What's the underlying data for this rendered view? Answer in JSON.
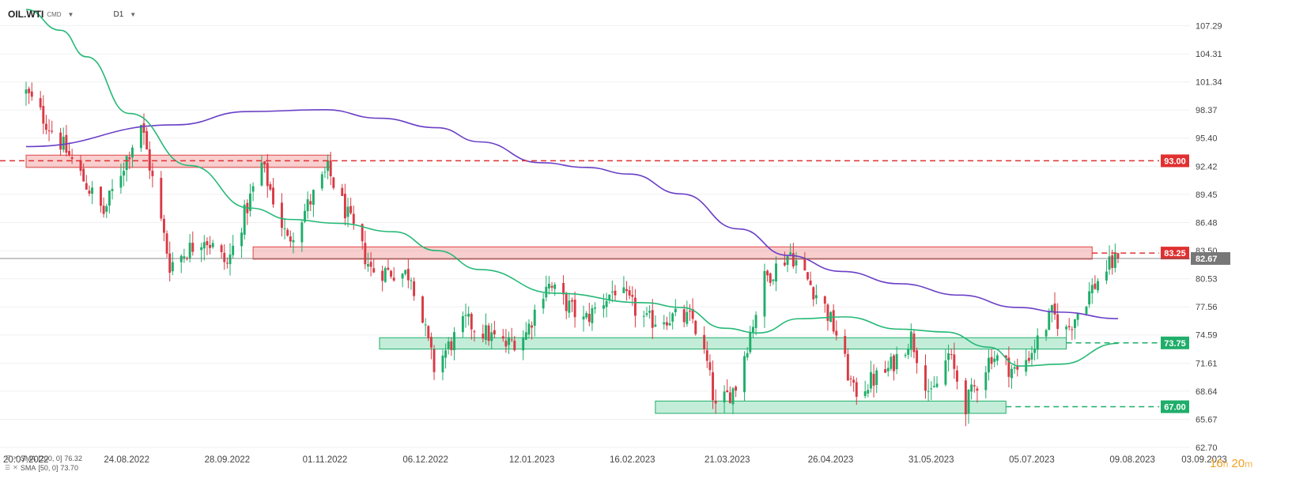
{
  "header": {
    "symbol": "OIL.WTI",
    "exchange": "CMD",
    "timeframe": "D1"
  },
  "legend": [
    {
      "name": "SMA",
      "params": "[200, 0]",
      "value": "76.32"
    },
    {
      "name": "SMA",
      "params": "[50, 0]",
      "value": "73.70"
    }
  ],
  "timer": {
    "hours": "16",
    "h_unit": "h",
    "minutes": "20",
    "m_unit": "m"
  },
  "chart_data": {
    "type": "candlestick",
    "y_ticks": [
      "107.29",
      "104.31",
      "101.34",
      "98.37",
      "95.40",
      "92.42",
      "89.45",
      "86.48",
      "83.50",
      "80.53",
      "77.56",
      "74.59",
      "71.61",
      "68.64",
      "65.67",
      "62.70"
    ],
    "x_ticks": [
      "20.07.2022",
      "24.08.2022",
      "28.09.2022",
      "01.11.2022",
      "06.12.2022",
      "12.01.2023",
      "16.02.2023",
      "21.03.2023",
      "26.04.2023",
      "31.05.2023",
      "05.07.2023",
      "09.08.2023",
      "03.09.2023"
    ],
    "ylim": [
      62.7,
      110.0
    ],
    "levels": [
      {
        "value": 93.0,
        "label": "93.00",
        "color": "#e03030"
      },
      {
        "value": 83.25,
        "label": "83.25",
        "color": "#e03030"
      },
      {
        "value": 73.75,
        "label": "73.75",
        "color": "#1fae6a"
      },
      {
        "value": 67.0,
        "label": "67.00",
        "color": "#1fae6a"
      }
    ],
    "last_price": {
      "value": 82.67,
      "label": "82.67"
    },
    "zones": [
      {
        "from": "20.07.2022",
        "to": "03.11.2022",
        "low": 92.3,
        "high": 93.6,
        "color": "red"
      },
      {
        "from": "07.10.2022",
        "to": "26.07.2023",
        "low": 82.6,
        "high": 83.9,
        "color": "red"
      },
      {
        "from": "20.11.2022",
        "to": "17.07.2023",
        "low": 73.1,
        "high": 74.3,
        "color": "green"
      },
      {
        "from": "24.02.2023",
        "to": "26.06.2023",
        "low": 66.3,
        "high": 67.6,
        "color": "green"
      }
    ],
    "anchors": [
      [
        "20.07.2022",
        100.2
      ],
      [
        "02.08.2022",
        94.5
      ],
      [
        "16.08.2022",
        87.5
      ],
      [
        "29.08.2022",
        97.0
      ],
      [
        "08.09.2022",
        82.0
      ],
      [
        "20.09.2022",
        85.0
      ],
      [
        "28.09.2022",
        82.0
      ],
      [
        "10.10.2022",
        92.6
      ],
      [
        "19.10.2022",
        84.5
      ],
      [
        "02.11.2022",
        92.0
      ],
      [
        "17.11.2022",
        81.5
      ],
      [
        "01.12.2022",
        81.0
      ],
      [
        "09.12.2022",
        71.1
      ],
      [
        "20.12.2022",
        76.0
      ],
      [
        "03.01.2023",
        73.5
      ],
      [
        "10.01.2023",
        74.8
      ],
      [
        "17.01.2023",
        80.1
      ],
      [
        "30.01.2023",
        76.0
      ],
      [
        "10.02.2023",
        79.5
      ],
      [
        "21.02.2023",
        76.0
      ],
      [
        "28.02.2023",
        76.5
      ],
      [
        "09.03.2023",
        76.2
      ],
      [
        "14.03.2023",
        71.5
      ],
      [
        "17.03.2023",
        66.7
      ],
      [
        "24.03.2023",
        69.2
      ],
      [
        "03.04.2023",
        80.5
      ],
      [
        "12.04.2023",
        83.3
      ],
      [
        "24.04.2023",
        77.5
      ],
      [
        "28.04.2023",
        74.7
      ],
      [
        "04.05.2023",
        68.5
      ],
      [
        "16.05.2023",
        70.9
      ],
      [
        "24.05.2023",
        74.4
      ],
      [
        "31.05.2023",
        67.9
      ],
      [
        "06.06.2023",
        72.5
      ],
      [
        "12.06.2023",
        67.2
      ],
      [
        "21.06.2023",
        72.5
      ],
      [
        "30.06.2023",
        70.6
      ],
      [
        "07.07.2023",
        73.9
      ],
      [
        "12.07.2023",
        76.8
      ],
      [
        "17.07.2023",
        75.0
      ],
      [
        "21.07.2023",
        77.0
      ],
      [
        "26.07.2023",
        79.5
      ],
      [
        "31.07.2023",
        81.6
      ],
      [
        "04.08.2023",
        82.67
      ]
    ],
    "sma200": [
      [
        "20.07.2022",
        94.5
      ],
      [
        "10.09.2022",
        96.8
      ],
      [
        "05.10.2022",
        98.2
      ],
      [
        "01.11.2022",
        98.4
      ],
      [
        "20.11.2022",
        97.5
      ],
      [
        "10.12.2022",
        96.5
      ],
      [
        "25.12.2022",
        95.0
      ],
      [
        "15.01.2023",
        92.8
      ],
      [
        "31.01.2023",
        92.3
      ],
      [
        "15.02.2023",
        91.6
      ],
      [
        "05.03.2023",
        89.5
      ],
      [
        "25.03.2023",
        85.8
      ],
      [
        "11.04.2023",
        83.0
      ],
      [
        "30.04.2023",
        81.3
      ],
      [
        "20.05.2023",
        80.0
      ],
      [
        "10.06.2023",
        78.8
      ],
      [
        "30.06.2023",
        77.5
      ],
      [
        "15.07.2023",
        77.0
      ],
      [
        "04.08.2023",
        76.32
      ]
    ],
    "sma50": [
      [
        "20.07.2022",
        109.0
      ],
      [
        "01.08.2022",
        106.8
      ],
      [
        "10.08.2022",
        104.0
      ],
      [
        "25.08.2022",
        98.0
      ],
      [
        "15.09.2022",
        92.5
      ],
      [
        "06.10.2022",
        88.0
      ],
      [
        "20.10.2022",
        86.8
      ],
      [
        "05.11.2022",
        86.4
      ],
      [
        "25.11.2022",
        85.5
      ],
      [
        "10.12.2022",
        83.5
      ],
      [
        "25.12.2022",
        81.5
      ],
      [
        "20.01.2023",
        79.0
      ],
      [
        "20.02.2023",
        78.0
      ],
      [
        "05.03.2023",
        77.5
      ],
      [
        "20.03.2023",
        75.3
      ],
      [
        "01.04.2023",
        74.8
      ],
      [
        "15.04.2023",
        76.3
      ],
      [
        "01.05.2023",
        76.5
      ],
      [
        "20.05.2023",
        75.2
      ],
      [
        "05.06.2023",
        74.9
      ],
      [
        "20.06.2023",
        73.3
      ],
      [
        "01.07.2023",
        71.3
      ],
      [
        "15.07.2023",
        71.5
      ],
      [
        "04.08.2023",
        73.7
      ]
    ]
  },
  "colors": {
    "up": "#1fae6a",
    "down": "#d93a45",
    "sma200": "#6a3fc6",
    "sma50": "#25b876",
    "grid": "#f0f0f0",
    "axis_text": "#444"
  }
}
